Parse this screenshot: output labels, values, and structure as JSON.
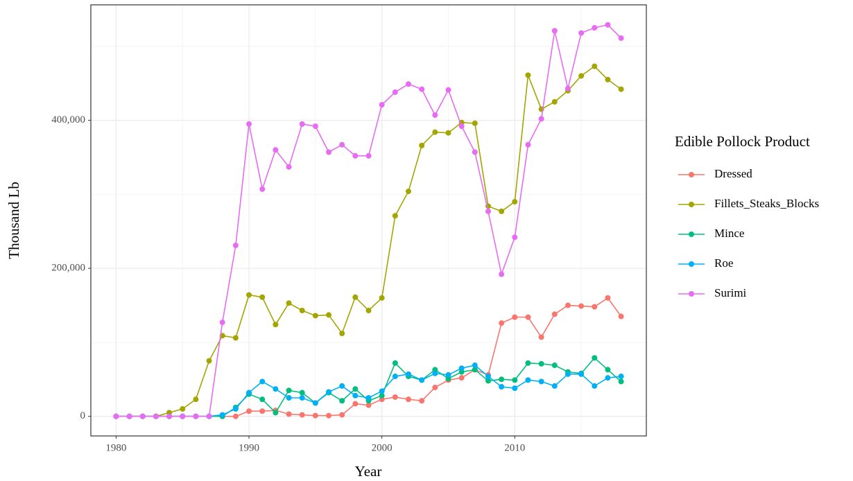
{
  "chart_data": {
    "type": "line",
    "x_label": "Year",
    "y_label": "Thousand Lb",
    "legend_title": "Edible Pollock Product",
    "legend_position": "right",
    "x": [
      1980,
      1981,
      1982,
      1983,
      1984,
      1985,
      1986,
      1987,
      1988,
      1989,
      1990,
      1991,
      1992,
      1993,
      1994,
      1995,
      1996,
      1997,
      1998,
      1999,
      2000,
      2001,
      2002,
      2003,
      2004,
      2005,
      2006,
      2007,
      2008,
      2009,
      2010,
      2011,
      2012,
      2013,
      2014,
      2015,
      2016,
      2017,
      2018
    ],
    "series": [
      {
        "name": "Dressed",
        "color": "#f8766d",
        "values": [
          0,
          0,
          0,
          0,
          0,
          0,
          0,
          0,
          0,
          0,
          7000,
          7000,
          8000,
          3000,
          2000,
          1000,
          1000,
          2000,
          17000,
          15000,
          23000,
          26000,
          23000,
          21000,
          39000,
          49000,
          52000,
          63000,
          56000,
          126000,
          134000,
          134000,
          107000,
          138000,
          150000,
          149000,
          148000,
          160000,
          135000
        ]
      },
      {
        "name": "Fillets_Steaks_Blocks",
        "color": "#a3a500",
        "values": [
          0,
          0,
          0,
          0,
          5000,
          10000,
          23000,
          75000,
          109000,
          106000,
          164000,
          161000,
          124000,
          153000,
          143000,
          136000,
          137000,
          112000,
          161000,
          143000,
          160000,
          271000,
          304000,
          366000,
          384000,
          383000,
          397000,
          396000,
          284000,
          277000,
          290000,
          461000,
          415000,
          425000,
          440000,
          460000,
          473000,
          455000,
          442000
        ]
      },
      {
        "name": "Mince",
        "color": "#00bf7d",
        "values": [
          0,
          0,
          0,
          0,
          0,
          0,
          0,
          0,
          0,
          12000,
          30000,
          23000,
          5000,
          35000,
          32000,
          18000,
          32000,
          21000,
          37000,
          21000,
          28000,
          72000,
          54000,
          49000,
          63000,
          51000,
          60000,
          63000,
          48000,
          50000,
          49000,
          72000,
          71000,
          69000,
          60000,
          58000,
          79000,
          63000,
          47000
        ]
      },
      {
        "name": "Roe",
        "color": "#00b0f6",
        "values": [
          0,
          0,
          0,
          0,
          0,
          0,
          0,
          0,
          2000,
          10000,
          32000,
          47000,
          37000,
          25000,
          25000,
          18000,
          33000,
          41000,
          28000,
          25000,
          34000,
          54000,
          57000,
          49000,
          58000,
          56000,
          65000,
          69000,
          54000,
          40000,
          38000,
          49000,
          47000,
          41000,
          57000,
          57000,
          41000,
          52000,
          54000
        ]
      },
      {
        "name": "Surimi",
        "color": "#e76bf3",
        "values": [
          0,
          0,
          0,
          0,
          0,
          0,
          0,
          0,
          127000,
          231000,
          395000,
          307000,
          360000,
          337000,
          395000,
          392000,
          357000,
          367000,
          352000,
          352000,
          421000,
          438000,
          449000,
          442000,
          407000,
          441000,
          392000,
          357000,
          277000,
          192000,
          242000,
          367000,
          402000,
          521000,
          443000,
          518000,
          525000,
          529000,
          511000
        ]
      }
    ],
    "xlim": [
      1978.1,
      2019.9
    ],
    "xticks": [
      1980,
      1990,
      2000,
      2010
    ],
    "ylim": [
      -26500,
      556000
    ],
    "yticks": [
      0,
      {
        "value": 200000,
        "label": "200,000"
      },
      {
        "value": 400000,
        "label": "400,000"
      }
    ],
    "grid": true,
    "minor_grid": true
  }
}
